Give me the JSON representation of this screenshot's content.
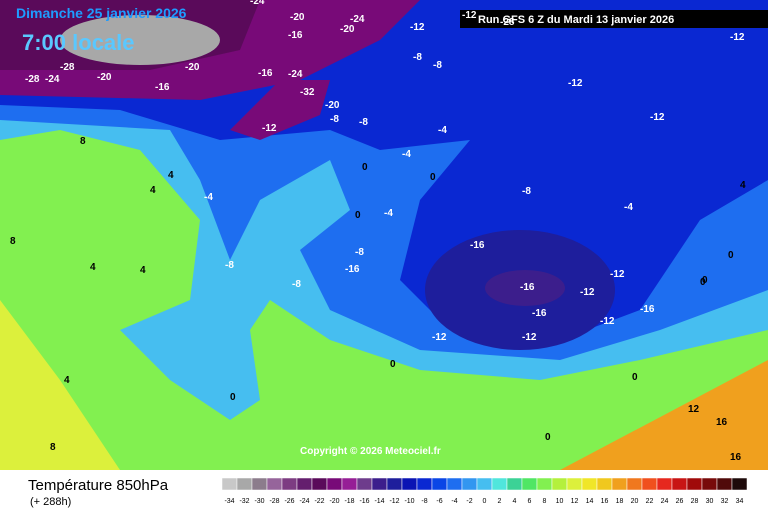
{
  "header": {
    "title": "Dimanche 25 janvier 2026",
    "subtitle": "7:00 locale",
    "run": "Run GFS 6 Z du Mardi 13 janvier 2026"
  },
  "copyright": "Copyright © 2026 Meteociel.fr",
  "footer": {
    "title": "Température 850hPa",
    "lead": "(+ 288h)"
  },
  "contour_labels": [
    "-24",
    "-20",
    "-24",
    "-12",
    "-16",
    "-20",
    "-28",
    "-24",
    "-28",
    "-20",
    "-16",
    "-20",
    "-28",
    "-16",
    "-24",
    "-32",
    "-20",
    "-12",
    "-12",
    "-8",
    "-8",
    "-12",
    "-12",
    "-12",
    "-16",
    "-16",
    "-12",
    "-8",
    "-8",
    "-4",
    "0",
    "-4",
    "0",
    "-4",
    "-8",
    "-8",
    "-16",
    "-16",
    "-16",
    "-12",
    "-12",
    "-12",
    "-12",
    "-4",
    "0",
    "0",
    "4",
    "8",
    "4",
    "4",
    "0",
    "4",
    "0",
    "0",
    "8",
    "12",
    "16",
    "16",
    "-4",
    "4",
    "0",
    "-8",
    "-8",
    "4",
    "0",
    "0",
    "8"
  ],
  "scale": [
    {
      "value": -34,
      "color": "#c8c8c8"
    },
    {
      "value": -32,
      "color": "#a8a8a8"
    },
    {
      "value": -30,
      "color": "#8c7c8c"
    },
    {
      "value": -28,
      "color": "#96649b"
    },
    {
      "value": -26,
      "color": "#7d3c82"
    },
    {
      "value": -24,
      "color": "#641e6e"
    },
    {
      "value": -22,
      "color": "#5a0a5a"
    },
    {
      "value": -20,
      "color": "#780a78"
    },
    {
      "value": -18,
      "color": "#961e96"
    },
    {
      "value": -16,
      "color": "#6e3c8c"
    },
    {
      "value": -14,
      "color": "#3c1e8c"
    },
    {
      "value": -12,
      "color": "#1e1e9c"
    },
    {
      "value": -10,
      "color": "#0a14b4"
    },
    {
      "value": -8,
      "color": "#0a28d2"
    },
    {
      "value": -6,
      "color": "#0a46e6"
    },
    {
      "value": -4,
      "color": "#1e6ef0"
    },
    {
      "value": -2,
      "color": "#3296f0"
    },
    {
      "value": 0,
      "color": "#46bef0"
    },
    {
      "value": 2,
      "color": "#50e6dc"
    },
    {
      "value": 4,
      "color": "#3cd296"
    },
    {
      "value": 6,
      "color": "#50e664"
    },
    {
      "value": 8,
      "color": "#82f050"
    },
    {
      "value": 10,
      "color": "#b4f03c"
    },
    {
      "value": 12,
      "color": "#dcf03c"
    },
    {
      "value": 14,
      "color": "#f0e628"
    },
    {
      "value": 16,
      "color": "#f0c81e"
    },
    {
      "value": 18,
      "color": "#f0a01e"
    },
    {
      "value": 20,
      "color": "#f0781e"
    },
    {
      "value": 22,
      "color": "#f0501e"
    },
    {
      "value": 24,
      "color": "#e6281e"
    },
    {
      "value": 26,
      "color": "#c81414"
    },
    {
      "value": 28,
      "color": "#a00a0a"
    },
    {
      "value": 30,
      "color": "#780a0a"
    },
    {
      "value": 32,
      "color": "#500a0a"
    },
    {
      "value": 34,
      "color": "#1e0a0a"
    }
  ]
}
